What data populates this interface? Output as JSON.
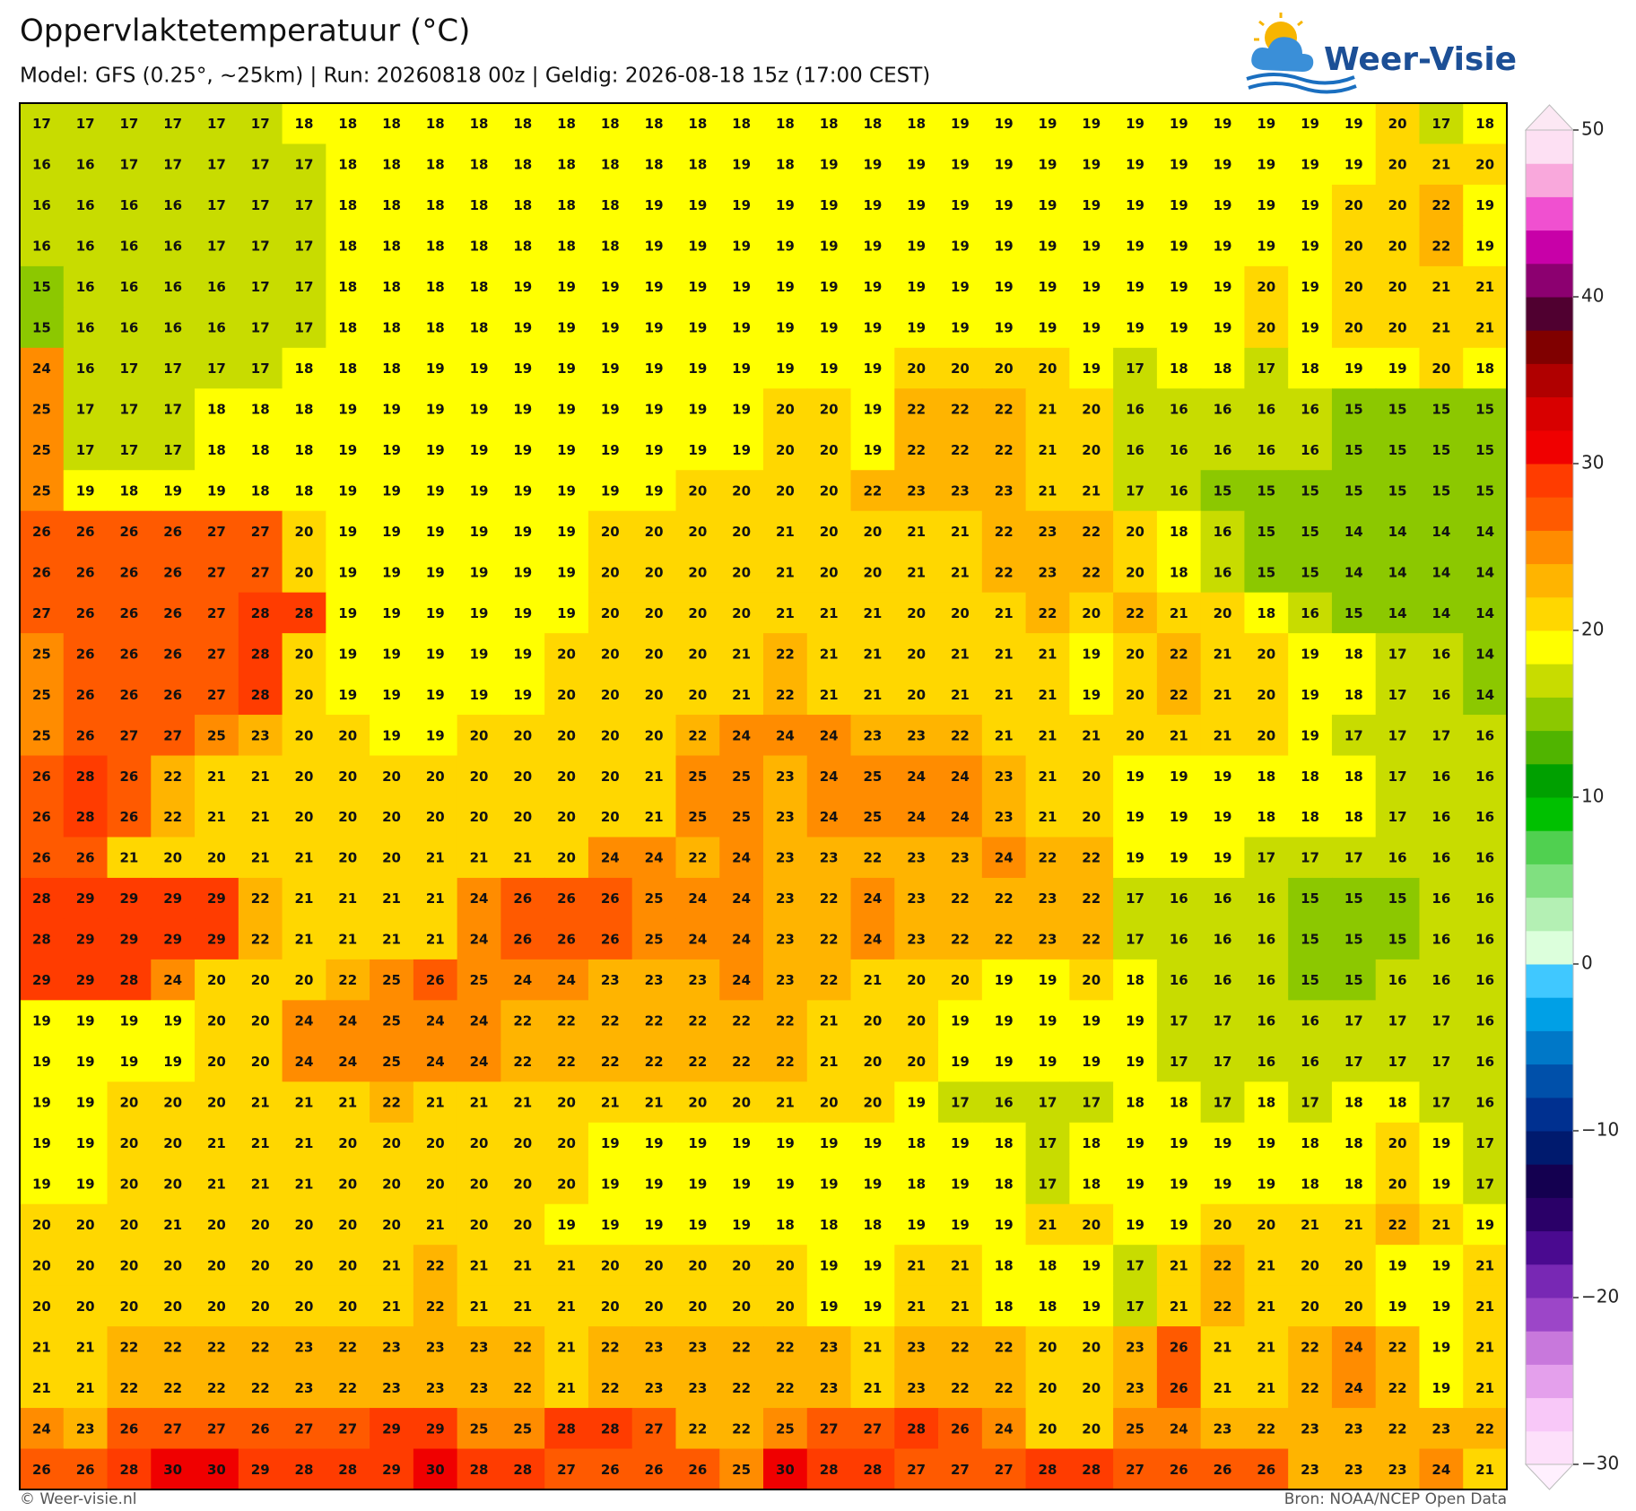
{
  "header": {
    "title": "Oppervlaktetemperatuur (°C)",
    "subtitle": "Model: GFS (0.25°, ~25km)  |  Run: 20260818 00z  |  Geldig: 2026-08-18 15z (17:00 CEST)"
  },
  "logo": {
    "text": "Weer-Visie"
  },
  "chart_data": {
    "type": "heatmap",
    "values": [
      [
        17,
        17,
        17,
        17,
        17,
        17,
        18,
        18,
        18,
        18,
        18,
        18,
        18,
        18,
        18,
        18,
        18,
        18,
        18,
        18,
        18,
        19,
        19,
        19,
        19,
        19,
        19,
        19,
        19,
        19,
        19,
        20,
        17,
        18
      ],
      [
        16,
        16,
        17,
        17,
        17,
        17,
        17,
        18,
        18,
        18,
        18,
        18,
        18,
        18,
        18,
        18,
        19,
        18,
        19,
        19,
        19,
        19,
        19,
        19,
        19,
        19,
        19,
        19,
        19,
        19,
        19,
        20,
        21,
        20
      ],
      [
        16,
        16,
        16,
        16,
        17,
        17,
        17,
        18,
        18,
        18,
        18,
        18,
        18,
        18,
        19,
        19,
        19,
        19,
        19,
        19,
        19,
        19,
        19,
        19,
        19,
        19,
        19,
        19,
        19,
        19,
        20,
        20,
        22,
        19
      ],
      [
        16,
        16,
        16,
        16,
        17,
        17,
        17,
        18,
        18,
        18,
        18,
        18,
        18,
        18,
        19,
        19,
        19,
        19,
        19,
        19,
        19,
        19,
        19,
        19,
        19,
        19,
        19,
        19,
        19,
        19,
        20,
        20,
        22,
        19
      ],
      [
        15,
        16,
        16,
        16,
        16,
        17,
        17,
        18,
        18,
        18,
        18,
        19,
        19,
        19,
        19,
        19,
        19,
        19,
        19,
        19,
        19,
        19,
        19,
        19,
        19,
        19,
        19,
        19,
        20,
        19,
        20,
        20,
        21,
        21
      ],
      [
        15,
        16,
        16,
        16,
        16,
        17,
        17,
        18,
        18,
        18,
        18,
        19,
        19,
        19,
        19,
        19,
        19,
        19,
        19,
        19,
        19,
        19,
        19,
        19,
        19,
        19,
        19,
        19,
        20,
        19,
        20,
        20,
        21,
        21
      ],
      [
        24,
        16,
        17,
        17,
        17,
        17,
        18,
        18,
        18,
        19,
        19,
        19,
        19,
        19,
        19,
        19,
        19,
        19,
        19,
        19,
        20,
        20,
        20,
        20,
        19,
        17,
        18,
        18,
        17,
        18,
        19,
        19,
        20,
        18
      ],
      [
        25,
        17,
        17,
        17,
        18,
        18,
        18,
        19,
        19,
        19,
        19,
        19,
        19,
        19,
        19,
        19,
        19,
        20,
        20,
        19,
        22,
        22,
        22,
        21,
        20,
        16,
        16,
        16,
        16,
        16,
        15,
        15,
        15,
        15
      ],
      [
        25,
        17,
        17,
        17,
        18,
        18,
        18,
        19,
        19,
        19,
        19,
        19,
        19,
        19,
        19,
        19,
        19,
        20,
        20,
        19,
        22,
        22,
        22,
        21,
        20,
        16,
        16,
        16,
        16,
        16,
        15,
        15,
        15,
        15
      ],
      [
        25,
        19,
        18,
        19,
        19,
        18,
        18,
        19,
        19,
        19,
        19,
        19,
        19,
        19,
        19,
        20,
        20,
        20,
        20,
        22,
        23,
        23,
        23,
        21,
        21,
        17,
        16,
        15,
        15,
        15,
        15,
        15,
        15,
        15
      ],
      [
        26,
        26,
        26,
        26,
        27,
        27,
        20,
        19,
        19,
        19,
        19,
        19,
        19,
        20,
        20,
        20,
        20,
        21,
        20,
        20,
        21,
        21,
        22,
        23,
        22,
        20,
        18,
        16,
        15,
        15,
        14,
        14,
        14,
        14
      ],
      [
        26,
        26,
        26,
        26,
        27,
        27,
        20,
        19,
        19,
        19,
        19,
        19,
        19,
        20,
        20,
        20,
        20,
        21,
        20,
        20,
        21,
        21,
        22,
        23,
        22,
        20,
        18,
        16,
        15,
        15,
        14,
        14,
        14,
        14
      ],
      [
        27,
        26,
        26,
        26,
        27,
        28,
        28,
        19,
        19,
        19,
        19,
        19,
        19,
        20,
        20,
        20,
        20,
        21,
        21,
        21,
        20,
        20,
        21,
        22,
        20,
        22,
        21,
        20,
        18,
        16,
        15,
        14,
        14,
        14
      ],
      [
        25,
        26,
        26,
        26,
        27,
        28,
        20,
        19,
        19,
        19,
        19,
        19,
        20,
        20,
        20,
        20,
        21,
        22,
        21,
        21,
        20,
        21,
        21,
        21,
        19,
        20,
        22,
        21,
        20,
        19,
        18,
        17,
        16,
        14
      ],
      [
        25,
        26,
        26,
        26,
        27,
        28,
        20,
        19,
        19,
        19,
        19,
        19,
        20,
        20,
        20,
        20,
        21,
        22,
        21,
        21,
        20,
        21,
        21,
        21,
        19,
        20,
        22,
        21,
        20,
        19,
        18,
        17,
        16,
        14
      ],
      [
        25,
        26,
        27,
        27,
        25,
        23,
        20,
        20,
        19,
        19,
        20,
        20,
        20,
        20,
        20,
        22,
        24,
        24,
        24,
        23,
        23,
        22,
        21,
        21,
        21,
        20,
        21,
        21,
        20,
        19,
        17,
        17,
        17,
        16
      ],
      [
        26,
        28,
        26,
        22,
        21,
        21,
        20,
        20,
        20,
        20,
        20,
        20,
        20,
        20,
        21,
        25,
        25,
        23,
        24,
        25,
        24,
        24,
        23,
        21,
        20,
        19,
        19,
        19,
        18,
        18,
        18,
        17,
        16,
        16
      ],
      [
        26,
        28,
        26,
        22,
        21,
        21,
        20,
        20,
        20,
        20,
        20,
        20,
        20,
        20,
        21,
        25,
        25,
        23,
        24,
        25,
        24,
        24,
        23,
        21,
        20,
        19,
        19,
        19,
        18,
        18,
        18,
        17,
        16,
        16
      ],
      [
        26,
        26,
        21,
        20,
        20,
        21,
        21,
        20,
        20,
        21,
        21,
        21,
        20,
        24,
        24,
        22,
        24,
        23,
        23,
        22,
        23,
        23,
        24,
        22,
        22,
        19,
        19,
        19,
        17,
        17,
        17,
        16,
        16,
        16
      ],
      [
        28,
        29,
        29,
        29,
        29,
        22,
        21,
        21,
        21,
        21,
        24,
        26,
        26,
        26,
        25,
        24,
        24,
        23,
        22,
        24,
        23,
        22,
        22,
        23,
        22,
        17,
        16,
        16,
        16,
        15,
        15,
        15,
        16,
        16
      ],
      [
        28,
        29,
        29,
        29,
        29,
        22,
        21,
        21,
        21,
        21,
        24,
        26,
        26,
        26,
        25,
        24,
        24,
        23,
        22,
        24,
        23,
        22,
        22,
        23,
        22,
        17,
        16,
        16,
        16,
        15,
        15,
        15,
        16,
        16
      ],
      [
        29,
        29,
        28,
        24,
        20,
        20,
        20,
        22,
        25,
        26,
        25,
        24,
        24,
        23,
        23,
        23,
        24,
        23,
        22,
        21,
        20,
        20,
        19,
        19,
        20,
        18,
        16,
        16,
        16,
        15,
        15,
        16,
        16,
        16
      ],
      [
        19,
        19,
        19,
        19,
        20,
        20,
        24,
        24,
        25,
        24,
        24,
        22,
        22,
        22,
        22,
        22,
        22,
        22,
        21,
        20,
        20,
        19,
        19,
        19,
        19,
        19,
        17,
        17,
        16,
        16,
        17,
        17,
        17,
        16
      ],
      [
        19,
        19,
        19,
        19,
        20,
        20,
        24,
        24,
        25,
        24,
        24,
        22,
        22,
        22,
        22,
        22,
        22,
        22,
        21,
        20,
        20,
        19,
        19,
        19,
        19,
        19,
        17,
        17,
        16,
        16,
        17,
        17,
        17,
        16
      ],
      [
        19,
        19,
        20,
        20,
        20,
        21,
        21,
        21,
        22,
        21,
        21,
        21,
        20,
        21,
        21,
        20,
        20,
        21,
        20,
        20,
        19,
        17,
        16,
        17,
        17,
        18,
        18,
        17,
        18,
        17,
        18,
        18,
        17,
        16
      ],
      [
        19,
        19,
        20,
        20,
        21,
        21,
        21,
        20,
        20,
        20,
        20,
        20,
        20,
        19,
        19,
        19,
        19,
        19,
        19,
        19,
        18,
        19,
        18,
        17,
        18,
        19,
        19,
        19,
        19,
        18,
        18,
        20,
        19,
        17
      ],
      [
        19,
        19,
        20,
        20,
        21,
        21,
        21,
        20,
        20,
        20,
        20,
        20,
        20,
        19,
        19,
        19,
        19,
        19,
        19,
        19,
        18,
        19,
        18,
        17,
        18,
        19,
        19,
        19,
        19,
        18,
        18,
        20,
        19,
        17
      ],
      [
        20,
        20,
        20,
        21,
        20,
        20,
        20,
        20,
        20,
        21,
        20,
        20,
        19,
        19,
        19,
        19,
        19,
        18,
        18,
        18,
        19,
        19,
        19,
        21,
        20,
        19,
        19,
        20,
        20,
        21,
        21,
        22,
        21,
        19
      ],
      [
        20,
        20,
        20,
        20,
        20,
        20,
        20,
        20,
        21,
        22,
        21,
        21,
        21,
        20,
        20,
        20,
        20,
        20,
        19,
        19,
        21,
        21,
        18,
        18,
        19,
        17,
        21,
        22,
        21,
        20,
        20,
        19,
        19,
        21
      ],
      [
        20,
        20,
        20,
        20,
        20,
        20,
        20,
        20,
        21,
        22,
        21,
        21,
        21,
        20,
        20,
        20,
        20,
        20,
        19,
        19,
        21,
        21,
        18,
        18,
        19,
        17,
        21,
        22,
        21,
        20,
        20,
        19,
        19,
        21
      ],
      [
        21,
        21,
        22,
        22,
        22,
        22,
        23,
        22,
        23,
        23,
        23,
        22,
        21,
        22,
        23,
        23,
        22,
        22,
        23,
        21,
        23,
        22,
        22,
        20,
        20,
        23,
        26,
        21,
        21,
        22,
        24,
        22,
        19,
        21
      ],
      [
        21,
        21,
        22,
        22,
        22,
        22,
        23,
        22,
        23,
        23,
        23,
        22,
        21,
        22,
        23,
        23,
        22,
        22,
        23,
        21,
        23,
        22,
        22,
        20,
        20,
        23,
        26,
        21,
        21,
        22,
        24,
        22,
        19,
        21
      ],
      [
        24,
        23,
        26,
        27,
        27,
        26,
        27,
        27,
        29,
        29,
        25,
        25,
        28,
        28,
        27,
        22,
        22,
        25,
        27,
        27,
        28,
        26,
        24,
        20,
        20,
        25,
        24,
        23,
        22,
        23,
        23,
        22,
        23,
        22
      ],
      [
        26,
        26,
        28,
        30,
        30,
        29,
        28,
        28,
        29,
        30,
        28,
        28,
        27,
        26,
        26,
        26,
        25,
        30,
        28,
        28,
        27,
        27,
        27,
        28,
        28,
        27,
        26,
        26,
        26,
        23,
        23,
        23,
        24,
        21
      ]
    ],
    "colorbar": {
      "lim": [
        -30,
        50
      ],
      "ticks": [
        50,
        40,
        30,
        20,
        10,
        0,
        {
          "value": -10,
          "label": "−10"
        },
        {
          "value": -20,
          "label": "−20"
        },
        {
          "value": -30,
          "label": "−30"
        }
      ],
      "colors": [
        "#fde0fa",
        "#f8c8f8",
        "#e4a0ec",
        "#c878dc",
        "#9c46c8",
        "#7828b4",
        "#4a0a90",
        "#2a0068",
        "#140050",
        "#001a6e",
        "#003090",
        "#0050aa",
        "#0078c8",
        "#00a0e6",
        "#40c8ff",
        "#dcffdc",
        "#b4f0b4",
        "#80e080",
        "#50d050",
        "#00c000",
        "#00a000",
        "#50b400",
        "#8cc800",
        "#c8dc00",
        "#ffff00",
        "#ffd700",
        "#ffb400",
        "#ff8c00",
        "#ff5a00",
        "#ff3c00",
        "#f00000",
        "#d80000",
        "#b00000",
        "#800000",
        "#500030",
        "#8c0070",
        "#c800a8",
        "#f050d0",
        "#f9a8dc",
        "#fde0f3"
      ],
      "under_color": "#fff0fe",
      "over_color": "#fce8f4"
    }
  },
  "footer": {
    "credit": "© Weer-visie.nl",
    "source": "Bron: NOAA/NCEP Open Data"
  }
}
